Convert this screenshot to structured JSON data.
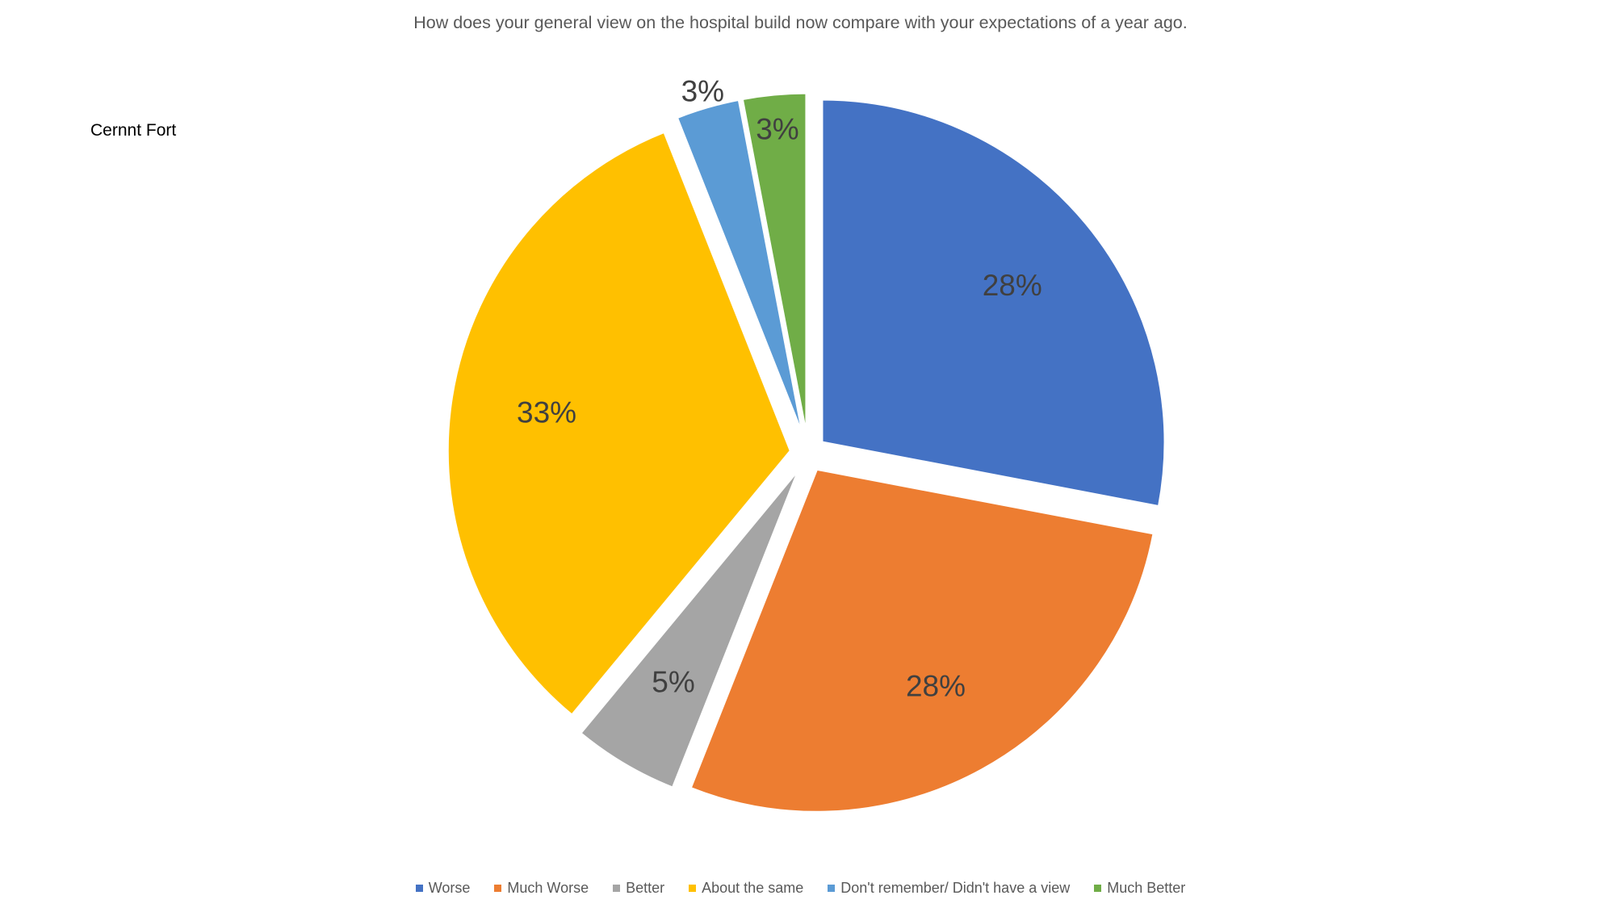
{
  "chart_data": {
    "type": "pie",
    "title": "How does  your general  view on the hospital build  now compare with your expectations of a year ago.",
    "side_label": "Cernnt Fort",
    "slices": [
      {
        "name": "Worse",
        "value": 28,
        "label": "28%",
        "color": "#4472C4"
      },
      {
        "name": "Much Worse",
        "value": 28,
        "label": "28%",
        "color": "#ED7D31"
      },
      {
        "name": "Better",
        "value": 5,
        "label": "5%",
        "color": "#A5A5A5"
      },
      {
        "name": "About the same",
        "value": 33,
        "label": "33%",
        "color": "#FFC000"
      },
      {
        "name": "Don't remember/ Didn't have a view",
        "value": 3,
        "label": "3%",
        "color": "#5B9BD5"
      },
      {
        "name": "Much Better",
        "value": 3,
        "label": "3%",
        "color": "#70AD47"
      }
    ],
    "legend_position": "bottom"
  }
}
